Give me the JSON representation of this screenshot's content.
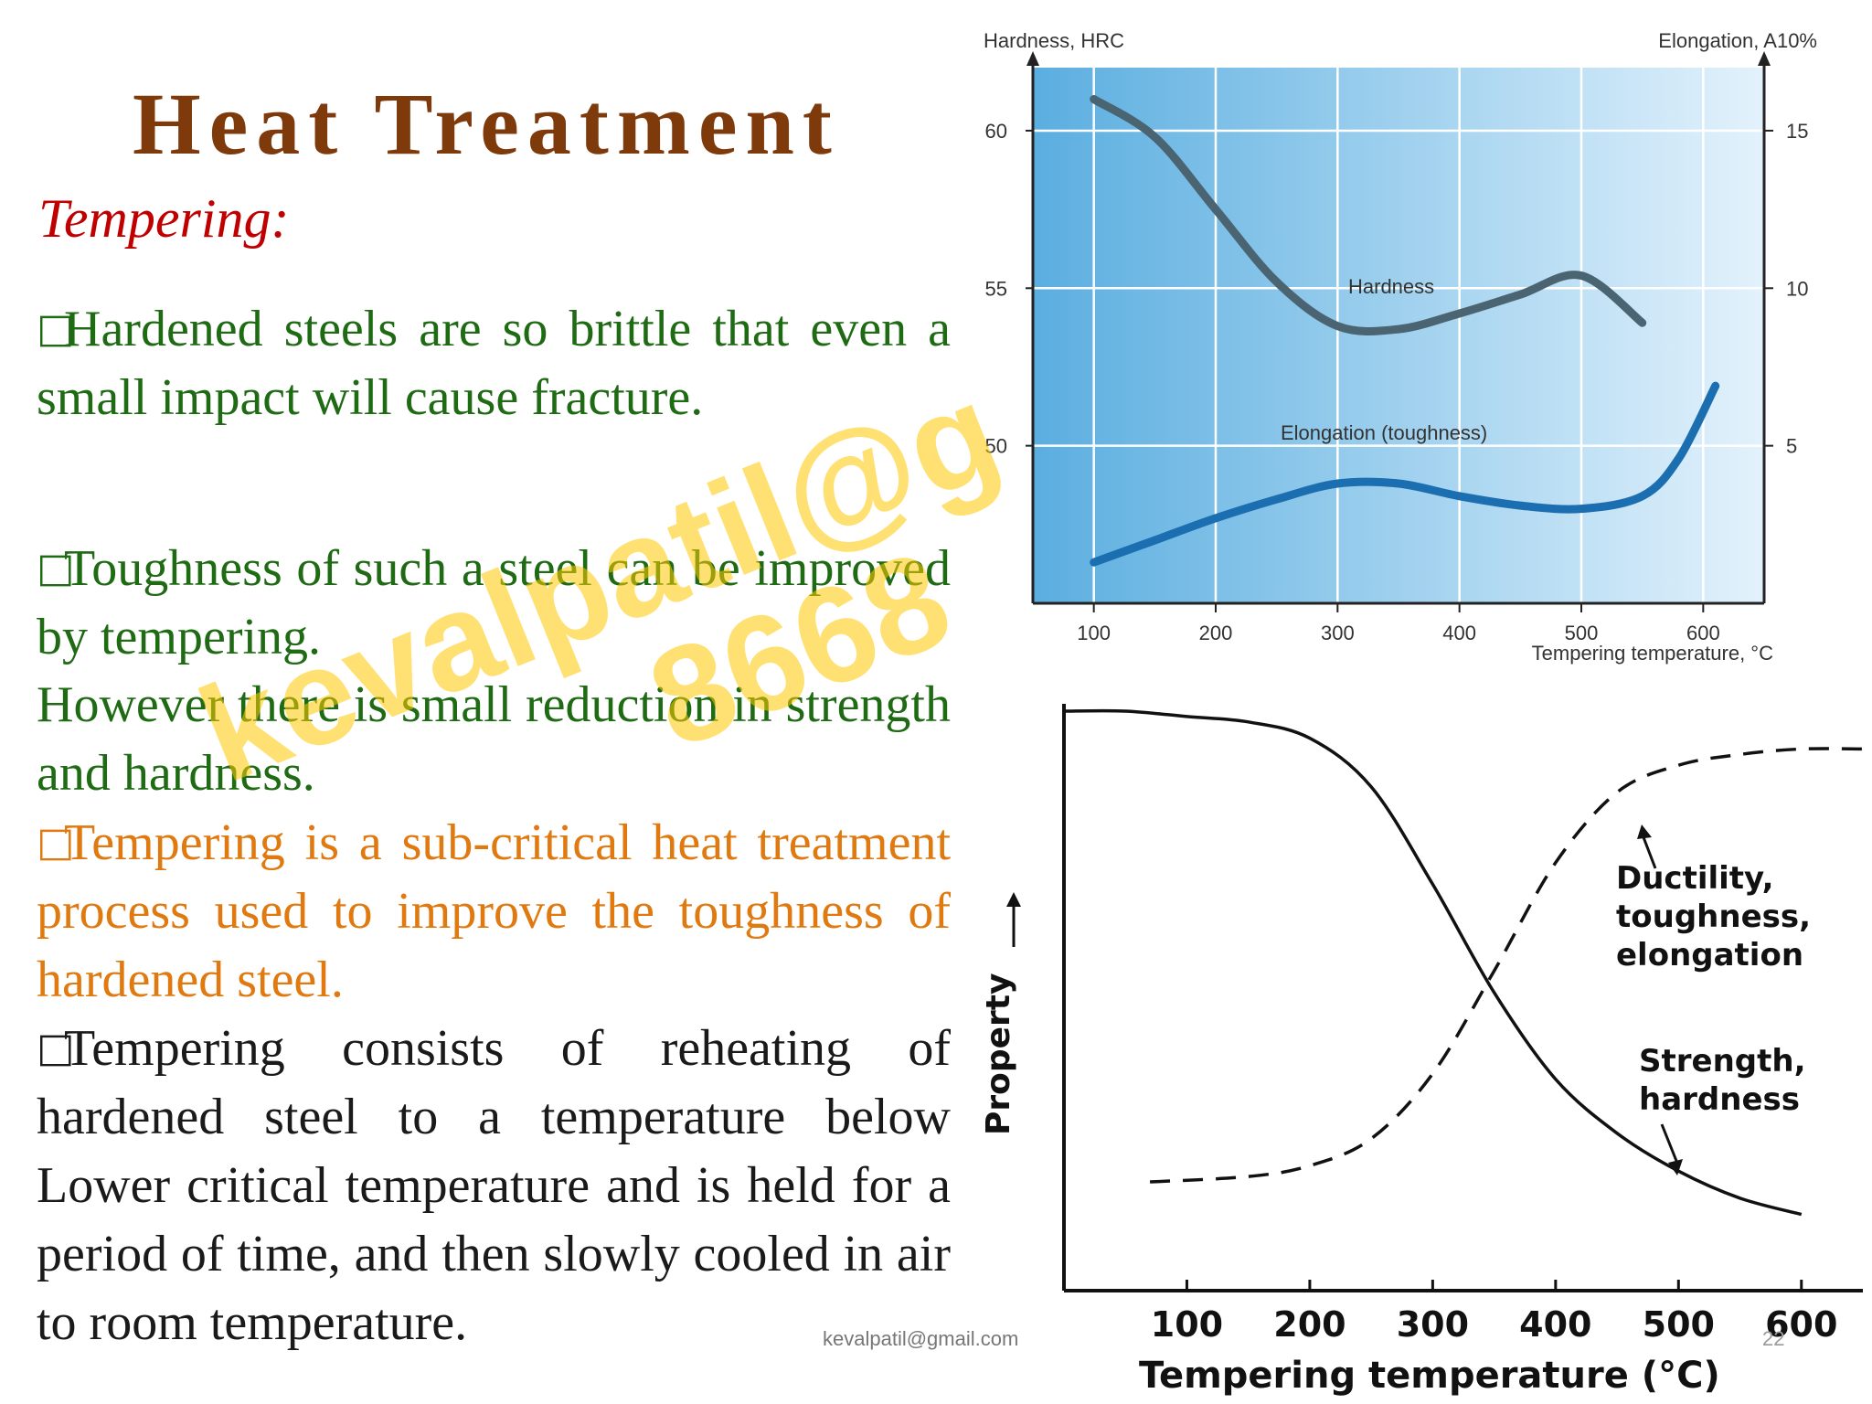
{
  "slide": {
    "title": "Heat Treatment",
    "subtitle": "Tempering:",
    "bullet_glyph": "□",
    "paragraphs": {
      "p1": "Hardened steels are so brittle that even a small impact will cause fracture.",
      "p2": "Toughness of such a steel can be improved by tempering.",
      "p3": "However there is small reduction in strength and hardness.",
      "p4": "Tempering is a sub-critical heat treatment process used to improve the toughness of hardened steel.",
      "p5": "Tempering consists of reheating of hardened steel to a temperature below Lower critical temperature and is held for a period of time, and then slowly cooled in air to room temperature."
    },
    "watermark": {
      "line1": "kevalpatil@g",
      "line2": "8668"
    },
    "footer_email": "kevalpatil@gmail.com",
    "page_number": "22"
  },
  "colors": {
    "title": "#7f3a0c",
    "subtitle": "#c00000",
    "green_text": "#1e6b14",
    "orange_text": "#e07a10",
    "hardness_curve": "#4a6472",
    "elongation_curve": "#1b6fb0",
    "plot_background": "#7fc0e6"
  },
  "chart_data": [
    {
      "type": "line",
      "x": [
        100,
        150,
        200,
        250,
        300,
        350,
        400,
        450,
        500,
        550,
        610
      ],
      "y_left_label": "Hardness, HRC",
      "y_right_label": "Elongation, A10%",
      "xlabel": "Tempering temperature, °C",
      "xticks": [
        "100",
        "200",
        "300",
        "400",
        "500",
        "600"
      ],
      "yticks_left": [
        "50",
        "55",
        "60"
      ],
      "yticks_right": [
        "5",
        "10",
        "15"
      ],
      "xlim": [
        50,
        650
      ],
      "ylim_left": [
        45,
        62
      ],
      "ylim_right": [
        0,
        17
      ],
      "grid": true,
      "series": [
        {
          "name": "Hardness",
          "axis": "left",
          "x": [
            100,
            150,
            200,
            250,
            300,
            350,
            400,
            450,
            500,
            550
          ],
          "values": [
            61,
            59.8,
            57.5,
            55.2,
            53.8,
            53.7,
            54.2,
            54.8,
            55.4,
            53.9
          ]
        },
        {
          "name": "Elongation (toughness)",
          "axis": "right",
          "x": [
            100,
            150,
            200,
            250,
            300,
            350,
            400,
            450,
            500,
            550,
            580,
            610
          ],
          "values": [
            1.3,
            2.0,
            2.7,
            3.3,
            3.8,
            3.8,
            3.4,
            3.1,
            3.0,
            3.4,
            4.6,
            6.9
          ]
        }
      ]
    },
    {
      "type": "line",
      "x": [
        0,
        100,
        200,
        300,
        400,
        500,
        600
      ],
      "ylabel": "Property",
      "xlabel": "Tempering temperature (°C)",
      "xticks": [
        "100",
        "200",
        "300",
        "400",
        "500",
        "600"
      ],
      "xlim": [
        0,
        650
      ],
      "ylim": [
        0,
        1
      ],
      "y_units": "relative (no numeric scale)",
      "series": [
        {
          "name": "Strength, hardness",
          "style": "solid",
          "x": [
            0,
            50,
            100,
            150,
            200,
            250,
            300,
            350,
            400,
            450,
            500,
            550,
            600
          ],
          "values": [
            1.0,
            1.0,
            0.99,
            0.98,
            0.95,
            0.86,
            0.68,
            0.48,
            0.32,
            0.22,
            0.15,
            0.1,
            0.07
          ]
        },
        {
          "name": "Ductility, toughness, elongation",
          "style": "dashed",
          "x": [
            70,
            150,
            200,
            250,
            300,
            350,
            400,
            450,
            500,
            550,
            600,
            650
          ],
          "values": [
            0.13,
            0.14,
            0.16,
            0.21,
            0.33,
            0.52,
            0.72,
            0.85,
            0.9,
            0.92,
            0.93,
            0.93
          ]
        }
      ]
    }
  ]
}
